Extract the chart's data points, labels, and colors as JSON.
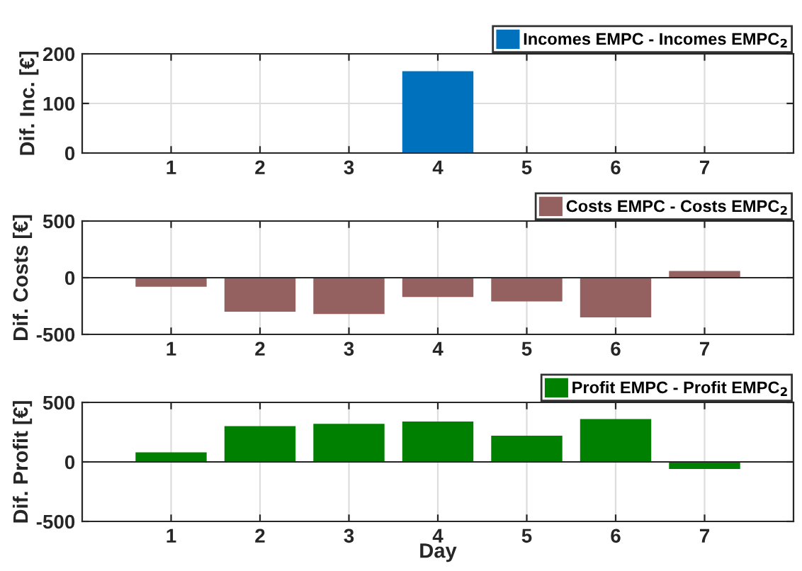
{
  "chart_data": [
    {
      "type": "bar",
      "x": [
        1,
        2,
        3,
        4,
        5,
        6,
        7
      ],
      "ylabel": "Dif. Inc. [€]",
      "xlim": [
        0,
        8
      ],
      "xticks": [
        1,
        2,
        3,
        4,
        5,
        6,
        7
      ],
      "ylim": [
        0,
        200
      ],
      "yticks": [
        0,
        100,
        200
      ],
      "grid": true,
      "legend": "top right",
      "series": [
        {
          "name": "Incomes EMPC - Incomes EMPC$_{2}$",
          "color": "#0072bd",
          "values": [
            0,
            0,
            0,
            165,
            0,
            0,
            0
          ]
        }
      ]
    },
    {
      "type": "bar",
      "x": [
        1,
        2,
        3,
        4,
        5,
        6,
        7
      ],
      "ylabel": "Dif. Costs [€]",
      "xlim": [
        0,
        8
      ],
      "xticks": [
        1,
        2,
        3,
        4,
        5,
        6,
        7
      ],
      "ylim": [
        -500,
        500
      ],
      "yticks": [
        -500,
        0,
        500
      ],
      "grid": true,
      "legend": "top right",
      "series": [
        {
          "name": "Costs EMPC - Costs EMPC$_{2}$",
          "color": "#946060",
          "values": [
            -80,
            -300,
            -320,
            -170,
            -210,
            -350,
            60
          ]
        }
      ]
    },
    {
      "type": "bar",
      "x": [
        1,
        2,
        3,
        4,
        5,
        6,
        7
      ],
      "xlabel": "Day",
      "ylabel": "Dif. Profit [€]",
      "xlim": [
        0,
        8
      ],
      "xticks": [
        1,
        2,
        3,
        4,
        5,
        6,
        7
      ],
      "ylim": [
        -500,
        500
      ],
      "yticks": [
        -500,
        0,
        500
      ],
      "grid": true,
      "legend": "top right",
      "series": [
        {
          "name": "Profit EMPC - Profit EMPC$_{2}$",
          "color": "#008000",
          "values": [
            80,
            300,
            320,
            340,
            220,
            360,
            -60
          ]
        }
      ]
    }
  ]
}
